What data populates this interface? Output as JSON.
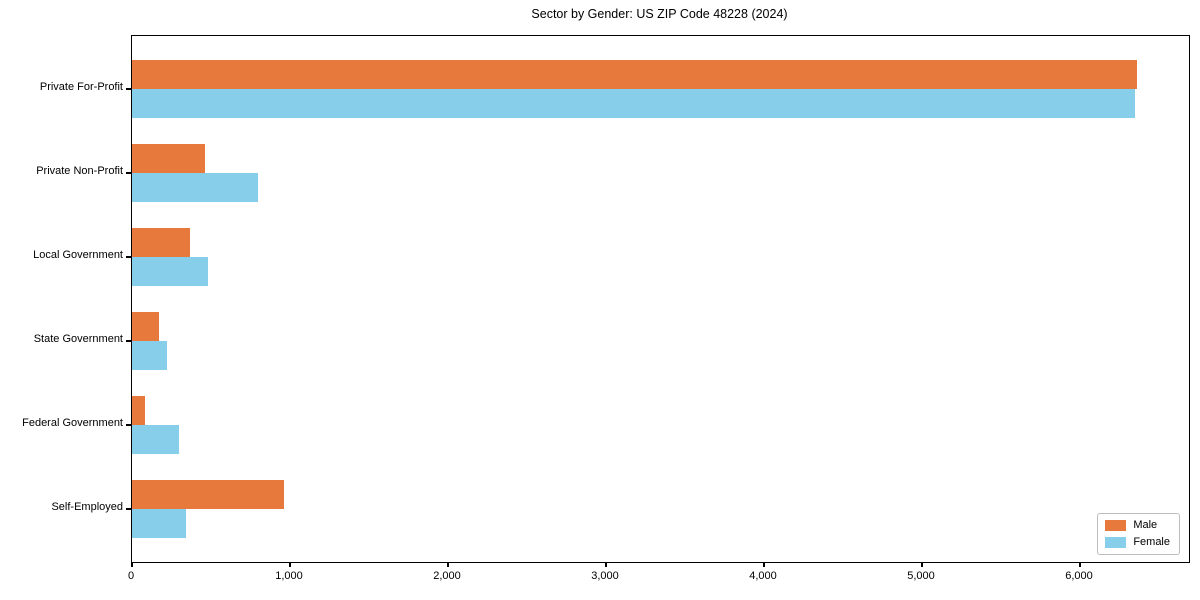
{
  "chart_data": {
    "type": "bar",
    "orientation": "horizontal",
    "title": "Sector by Gender: US ZIP Code 48228 (2024)",
    "categories": [
      "Private For-Profit",
      "Private Non-Profit",
      "Local Government",
      "State Government",
      "Federal Government",
      "Self-Employed"
    ],
    "series": [
      {
        "name": "Male",
        "color": "#E8793C",
        "values": [
          6360,
          460,
          370,
          170,
          80,
          960
        ]
      },
      {
        "name": "Female",
        "color": "#87CEEB",
        "values": [
          6350,
          800,
          480,
          220,
          300,
          340
        ]
      }
    ],
    "xlabel": "",
    "ylabel": "",
    "xlim": [
      0,
      6690
    ],
    "xticks": [
      0,
      1000,
      2000,
      3000,
      4000,
      5000,
      6000
    ],
    "xtick_labels": [
      "0",
      "1,000",
      "2,000",
      "3,000",
      "4,000",
      "5,000",
      "6,000"
    ],
    "grid": false,
    "legend": {
      "position": "lower right",
      "entries": [
        "Male",
        "Female"
      ]
    }
  }
}
